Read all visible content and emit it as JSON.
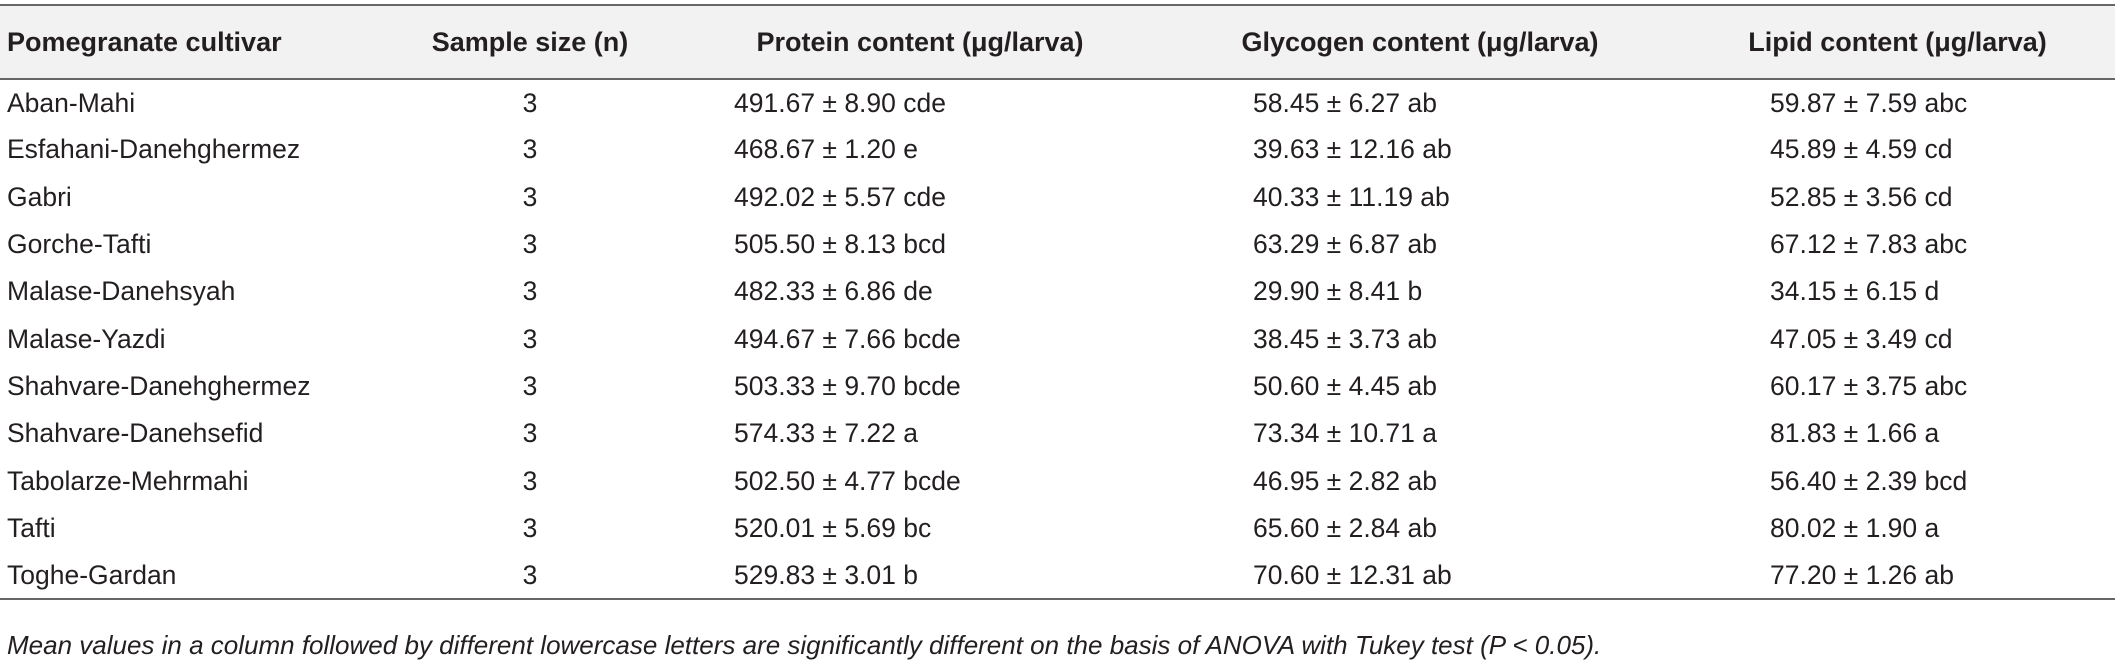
{
  "table": {
    "columns": [
      "Pomegranate cultivar",
      "Sample size (n)",
      "Protein content (μg/larva)",
      "Glycogen content (μg/larva)",
      "Lipid content (μg/larva)"
    ],
    "rows": [
      [
        "Aban-Mahi",
        "3",
        "491.67 ± 8.90 cde",
        "58.45 ± 6.27 ab",
        "59.87 ± 7.59 abc"
      ],
      [
        "Esfahani-Danehghermez",
        "3",
        "468.67 ± 1.20 e",
        "39.63 ± 12.16 ab",
        "45.89 ± 4.59 cd"
      ],
      [
        "Gabri",
        "3",
        "492.02 ± 5.57 cde",
        "40.33 ± 11.19 ab",
        "52.85 ± 3.56 cd"
      ],
      [
        "Gorche-Tafti",
        "3",
        "505.50 ± 8.13 bcd",
        "63.29 ± 6.87 ab",
        "67.12 ± 7.83 abc"
      ],
      [
        "Malase-Danehsyah",
        "3",
        "482.33 ± 6.86 de",
        "29.90 ± 8.41 b",
        "34.15 ± 6.15 d"
      ],
      [
        "Malase-Yazdi",
        "3",
        "494.67 ± 7.66 bcde",
        "38.45 ± 3.73 ab",
        "47.05 ± 3.49 cd"
      ],
      [
        "Shahvare-Danehghermez",
        "3",
        "503.33 ± 9.70 bcde",
        "50.60 ± 4.45 ab",
        "60.17 ± 3.75 abc"
      ],
      [
        "Shahvare-Danehsefid",
        "3",
        "574.33 ± 7.22 a",
        "73.34 ± 10.71 a",
        "81.83 ± 1.66 a"
      ],
      [
        "Tabolarze-Mehrmahi",
        "3",
        "502.50 ± 4.77 bcde",
        "46.95 ± 2.82 ab",
        "56.40 ± 2.39 bcd"
      ],
      [
        "Tafti",
        "3",
        "520.01 ± 5.69 bc",
        "65.60 ± 2.84 ab",
        "80.02 ± 1.90 a"
      ],
      [
        "Toghe-Gardan",
        "3",
        "529.83 ± 3.01 b",
        "70.60 ± 12.31 ab",
        "77.20 ± 1.26 ab"
      ]
    ]
  },
  "footnote": "Mean values in a column followed by different lowercase letters are significantly different on the basis of ANOVA with Tukey test (P < 0.05)."
}
